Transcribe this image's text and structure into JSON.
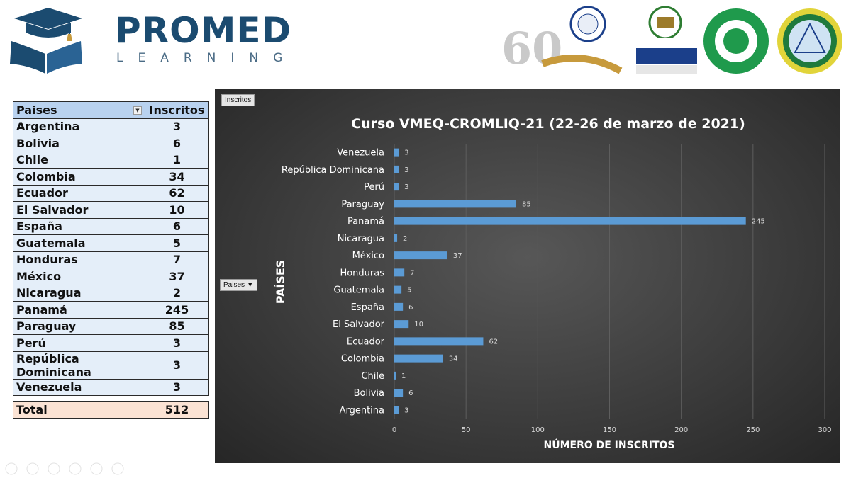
{
  "header": {
    "brand_name": "PROMED",
    "brand_sub": "LEARNING"
  },
  "table": {
    "col_country": "Paises",
    "col_count": "Inscritos",
    "rows": [
      {
        "country": "Argentina",
        "count": "3"
      },
      {
        "country": "Bolivia",
        "count": "6"
      },
      {
        "country": "Chile",
        "count": "1"
      },
      {
        "country": "Colombia",
        "count": "34"
      },
      {
        "country": "Ecuador",
        "count": "62"
      },
      {
        "country": "El Salvador",
        "count": "10"
      },
      {
        "country": "España",
        "count": "6"
      },
      {
        "country": "Guatemala",
        "count": "5"
      },
      {
        "country": "Honduras",
        "count": "7"
      },
      {
        "country": "México",
        "count": "37"
      },
      {
        "country": "Nicaragua",
        "count": "2"
      },
      {
        "country": "Panamá",
        "count": "245"
      },
      {
        "country": "Paraguay",
        "count": "85"
      },
      {
        "country": "Perú",
        "count": "3"
      },
      {
        "country": "República Dominicana",
        "count": "3"
      },
      {
        "country": "Venezuela",
        "count": "3"
      }
    ],
    "total_label": "Total",
    "total_value": "512"
  },
  "pivot": {
    "values_button": "Inscritos",
    "rows_button": "Paises"
  },
  "chart_data": {
    "type": "bar",
    "orientation": "horizontal",
    "title": "Curso VMEQ-CROMLIQ-21 (22-26 de marzo de 2021)",
    "xlabel": "NÚMERO DE INSCRITOS",
    "ylabel": "PAÍSES",
    "xlim": [
      0,
      300
    ],
    "xticks": [
      0,
      50,
      100,
      150,
      200,
      250,
      300
    ],
    "grid": true,
    "legend": "none",
    "bar_color": "#5b9bd5",
    "categories": [
      "Argentina",
      "Bolivia",
      "Chile",
      "Colombia",
      "Ecuador",
      "El Salvador",
      "España",
      "Guatemala",
      "Honduras",
      "México",
      "Nicaragua",
      "Panamá",
      "Paraguay",
      "Perú",
      "República Dominicana",
      "Venezuela"
    ],
    "values": [
      3,
      6,
      1,
      34,
      62,
      10,
      6,
      5,
      7,
      37,
      2,
      245,
      85,
      3,
      3,
      3
    ]
  }
}
